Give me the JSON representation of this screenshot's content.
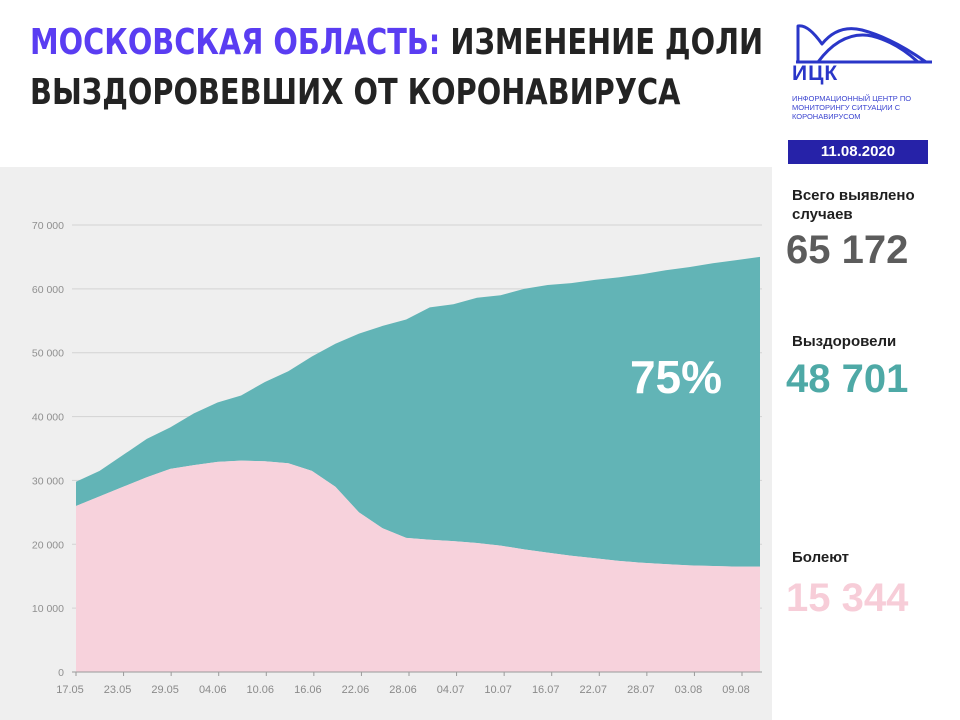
{
  "header": {
    "title_region": "МОСКОВСКАЯ ОБЛАСТЬ:",
    "title_rest_line1": " ИЗМЕНЕНИЕ ДОЛИ",
    "title_line2": "ВЫЗДОРОВЕВШИХ ОТ КОРОНАВИРУСА"
  },
  "logo": {
    "name": "ИЦК",
    "subtitle": "ИНФОРМАЦИОННЫЙ ЦЕНТР ПО МОНИТОРИНГУ СИТУАЦИИ С КОРОНАВИРУСОМ"
  },
  "date": "11.08.2020",
  "stats": {
    "total_label": "Всего выявлено случаев",
    "total_value": "65 172",
    "recovered_label": "Выздоровели",
    "recovered_value": "48 701",
    "sick_label": "Болеют",
    "sick_value": "15 344"
  },
  "colors": {
    "recovered": "#62b4b6",
    "sick": "#f7d2dc",
    "total_text": "#5c5c5c",
    "recovered_text": "#4ea9a6",
    "sick_text": "#f7cdd8",
    "accent": "#5a3df2",
    "badge": "#2622a8"
  },
  "chart_data": {
    "type": "area",
    "stacked": true,
    "annotation": "75%",
    "ylim": [
      0,
      70000
    ],
    "yticks": [
      "0",
      "10 000",
      "20 000",
      "30 000",
      "40 000",
      "50 000",
      "60 000",
      "70 000"
    ],
    "xticks": [
      "17.05",
      "23.05",
      "29.05",
      "04.06",
      "10.06",
      "16.06",
      "22.06",
      "28.06",
      "04.07",
      "10.07",
      "16.07",
      "22.07",
      "28.07",
      "03.08",
      "09.08"
    ],
    "grid": true,
    "series": [
      {
        "key": "sick",
        "values": [
          26000,
          27500,
          29000,
          30500,
          31800,
          32400,
          32900,
          33100,
          33000,
          32700,
          31500,
          29000,
          25000,
          22500,
          21000,
          20700,
          20500,
          20200,
          19800,
          19200,
          18700,
          18200,
          17800,
          17400,
          17100,
          16900,
          16700,
          16600,
          16500,
          16500
        ]
      },
      {
        "key": "recovered",
        "values": [
          3800,
          4000,
          5000,
          6000,
          6500,
          8100,
          9300,
          10200,
          12400,
          14400,
          17900,
          22400,
          28000,
          31700,
          34200,
          36400,
          37100,
          38400,
          39200,
          40800,
          41900,
          42700,
          43600,
          44400,
          45200,
          46000,
          46700,
          47400,
          48000,
          48500
        ]
      }
    ]
  }
}
